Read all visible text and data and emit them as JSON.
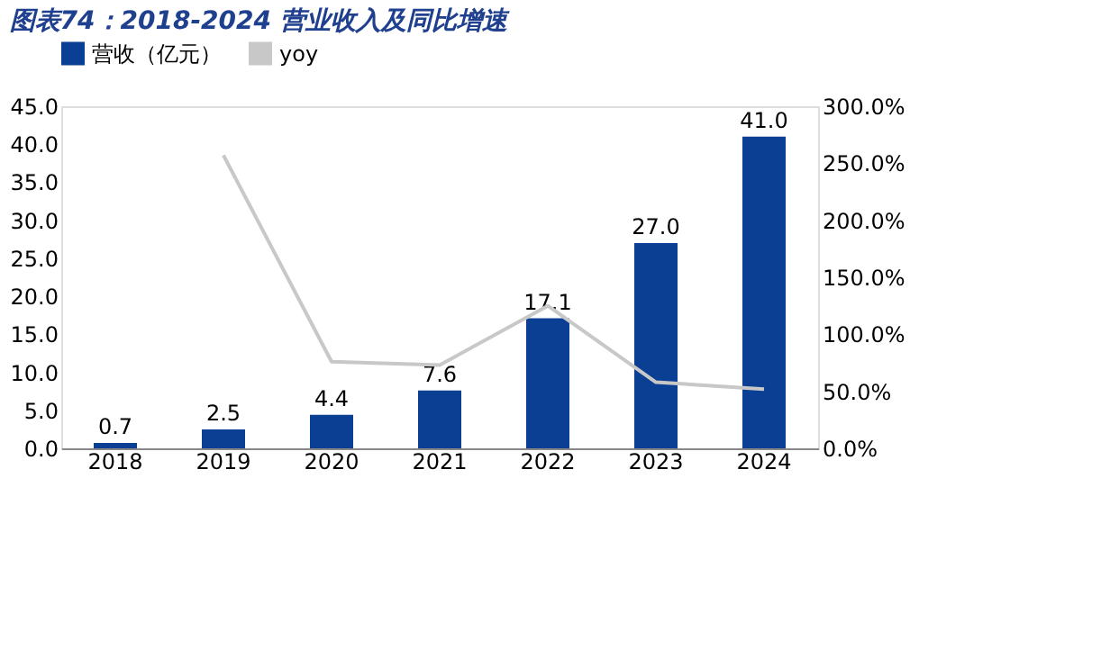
{
  "chart_data": {
    "type": "bar",
    "title": "图表74：2018-2024 营业收入及同比增速",
    "categories": [
      "2018",
      "2019",
      "2020",
      "2021",
      "2022",
      "2023",
      "2024"
    ],
    "series": [
      {
        "name": "营收（亿元）",
        "color": "#0b3f94",
        "values": [
          0.7,
          2.5,
          4.4,
          7.6,
          17.1,
          27.0,
          41.0
        ],
        "value_labels": [
          "0.7",
          "2.5",
          "4.4",
          "7.6",
          "17.1",
          "27.0",
          "41.0"
        ]
      },
      {
        "name": "yoy",
        "type": "line",
        "axis": "y2",
        "color": "#c8c8c8",
        "values": [
          null,
          257,
          76,
          73,
          125,
          58,
          52
        ]
      }
    ],
    "ylim": [
      0,
      45
    ],
    "yticks": [
      {
        "value": 0,
        "label": "0.0"
      },
      {
        "value": 5,
        "label": "5.0"
      },
      {
        "value": 10,
        "label": "10.0"
      },
      {
        "value": 15,
        "label": "15.0"
      },
      {
        "value": 20,
        "label": "20.0"
      },
      {
        "value": 25,
        "label": "25.0"
      },
      {
        "value": 30,
        "label": "30.0"
      },
      {
        "value": 35,
        "label": "35.0"
      },
      {
        "value": 40,
        "label": "40.0"
      },
      {
        "value": 45,
        "label": "45.0"
      }
    ],
    "y2lim": [
      0,
      300
    ],
    "y2ticks": [
      {
        "value": 0,
        "label": "0.0%"
      },
      {
        "value": 50,
        "label": "50.0%"
      },
      {
        "value": 100,
        "label": "100.0%"
      },
      {
        "value": 150,
        "label": "150.0%"
      },
      {
        "value": 200,
        "label": "200.0%"
      },
      {
        "value": 250,
        "label": "250.0%"
      },
      {
        "value": 300,
        "label": "300.0%"
      }
    ],
    "legend": "top",
    "grid": false
  }
}
